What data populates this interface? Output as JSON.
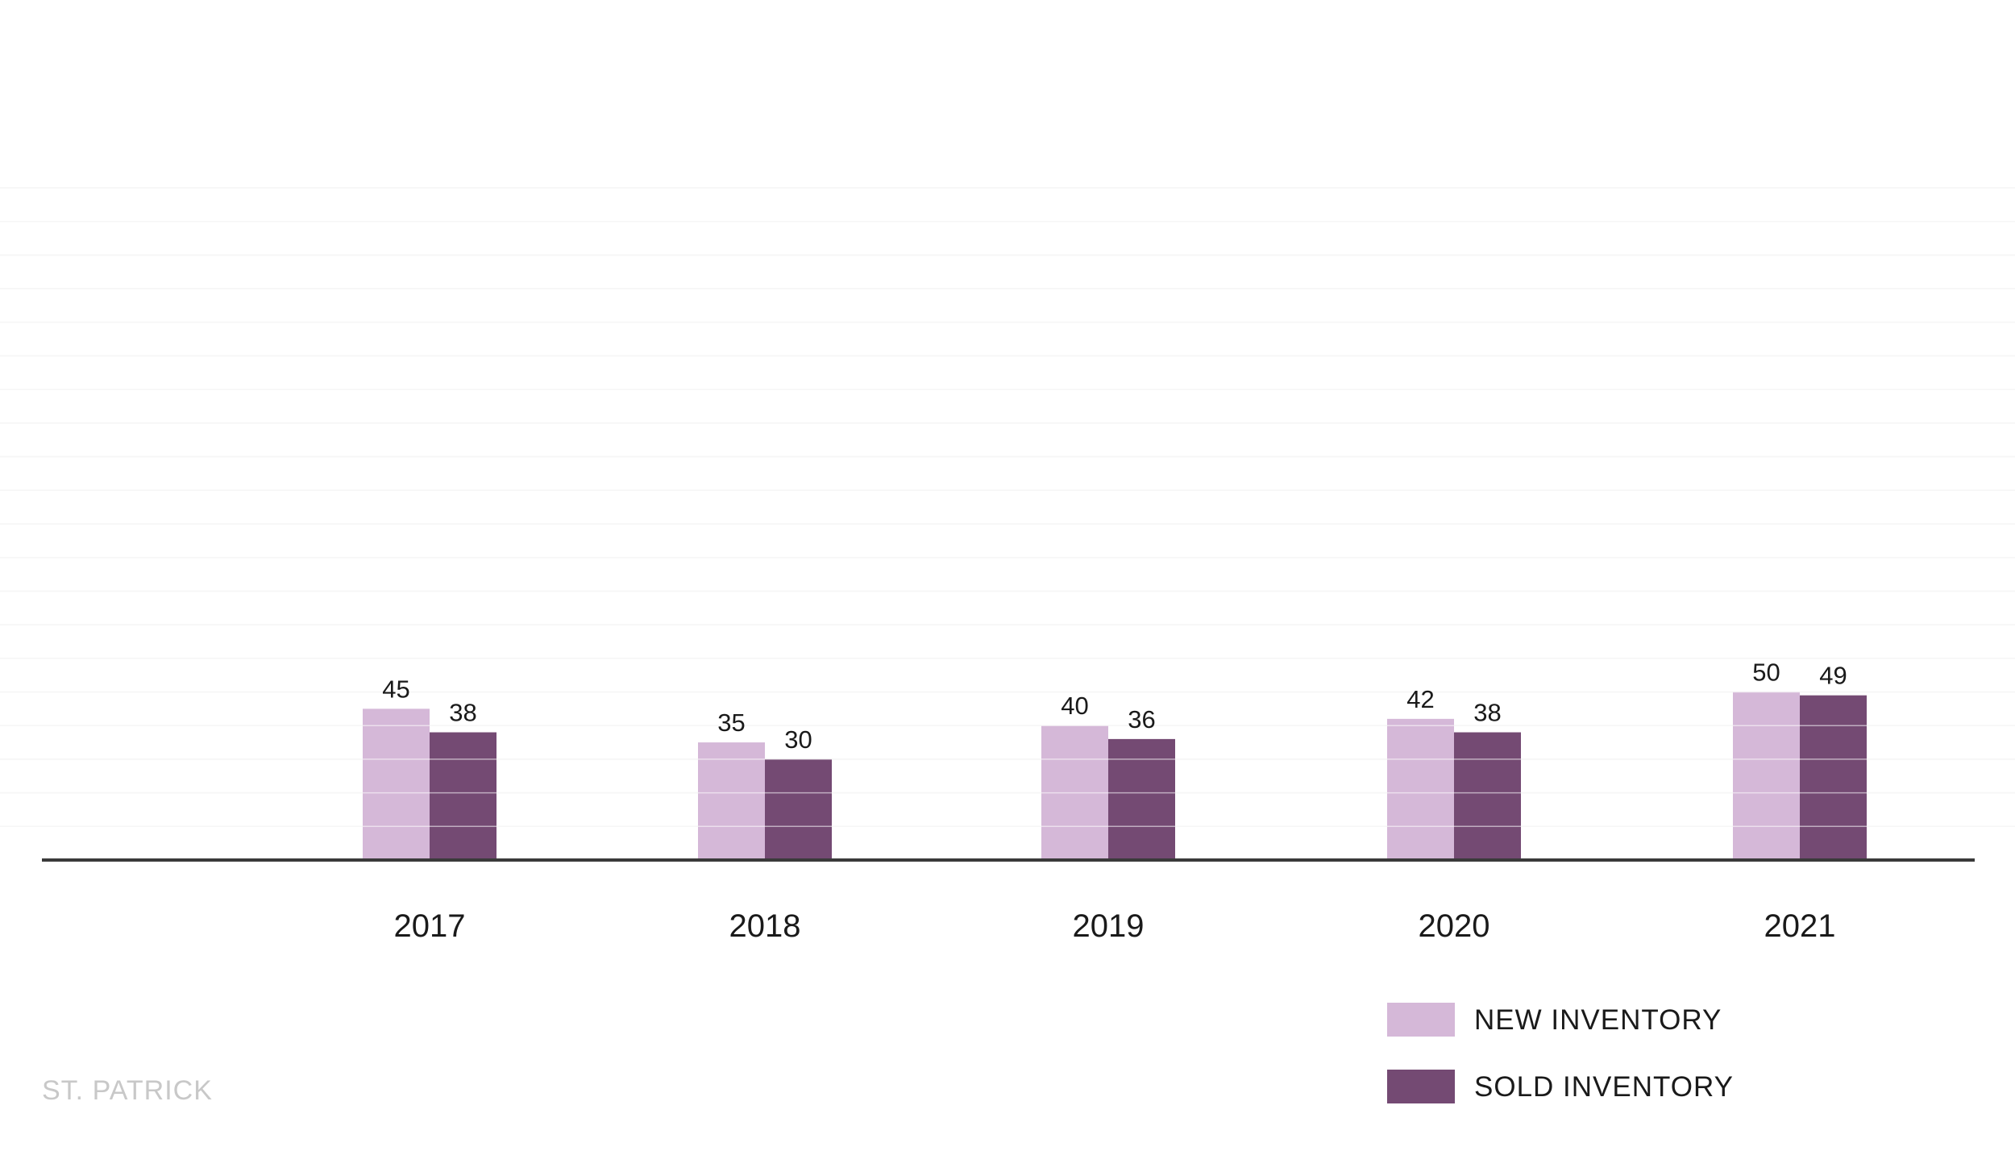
{
  "brand": {
    "watermark": "ST. PATRICK"
  },
  "chart_data": {
    "type": "bar",
    "title": "",
    "xlabel": "",
    "ylabel": "",
    "categories": [
      "2017",
      "2018",
      "2019",
      "2020",
      "2021"
    ],
    "series": [
      {
        "name": "NEW INVENTORY",
        "values": [
          45,
          35,
          40,
          42,
          50
        ],
        "color": "#d5b8d8"
      },
      {
        "name": "SOLD INVENTORY",
        "values": [
          38,
          30,
          36,
          38,
          49
        ],
        "color": "#744a73"
      }
    ],
    "ylim": [
      0,
      200
    ],
    "grid": true,
    "legend_position": "bottom-right",
    "data_labels": true
  }
}
